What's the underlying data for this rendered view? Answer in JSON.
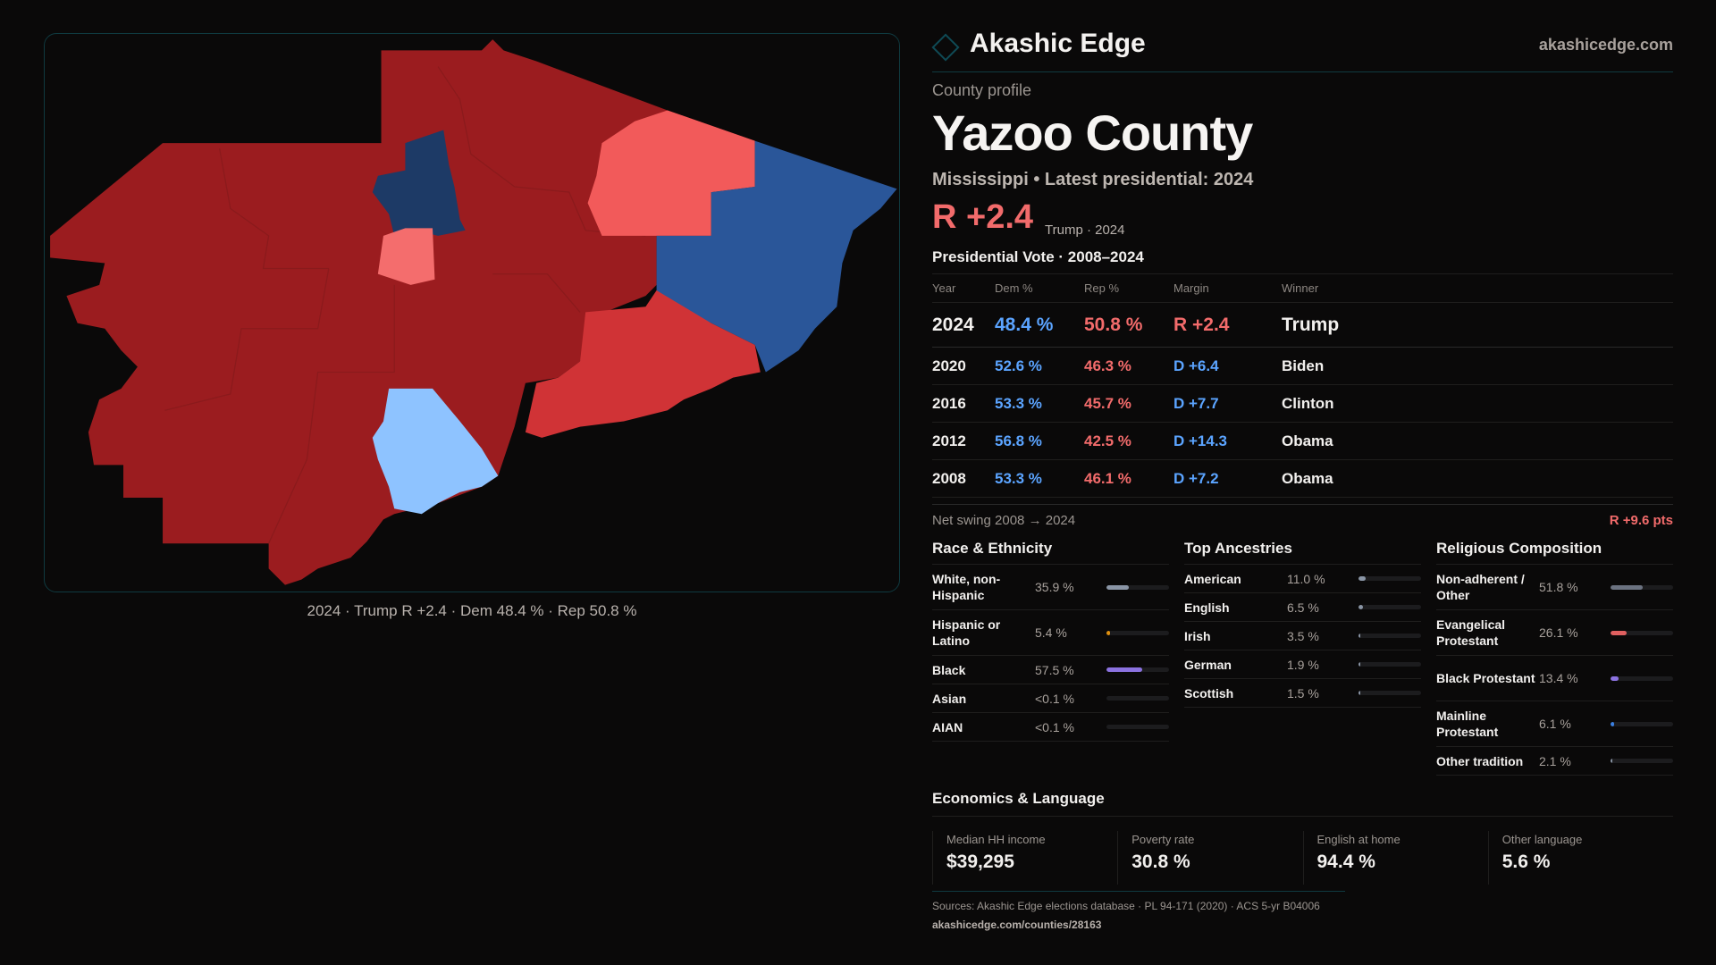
{
  "brand": {
    "name": "Akashic Edge",
    "site": "akashicedge.com"
  },
  "profile": {
    "kicker": "County profile",
    "title": "Yazoo County",
    "subtitle": "Mississippi • Latest presidential: 2024",
    "margin": "R +2.4",
    "margin_note": "Trump · 2024"
  },
  "map": {
    "caption": "2024 · Trump R +2.4 · Dem 48.4 % · Rep 50.8 %",
    "colors": {
      "strong_r": "#9b1c1f",
      "lean_r": "#d03336",
      "tilt_r": "#f25a5a",
      "strong_d": "#2a5699",
      "tilt_d": "#8ec3ff"
    }
  },
  "vote": {
    "title": "Presidential Vote · 2008–2024",
    "headers": [
      "Year",
      "Dem %",
      "Rep %",
      "Margin",
      "Winner"
    ],
    "rows": [
      {
        "year": "2024",
        "dem": "48.4 %",
        "rep": "50.8 %",
        "margin": "R +2.4",
        "party": "rep",
        "winner": "Trump"
      },
      {
        "year": "2020",
        "dem": "52.6 %",
        "rep": "46.3 %",
        "margin": "D +6.4",
        "party": "dem",
        "winner": "Biden"
      },
      {
        "year": "2016",
        "dem": "53.3 %",
        "rep": "45.7 %",
        "margin": "D +7.7",
        "party": "dem",
        "winner": "Clinton"
      },
      {
        "year": "2012",
        "dem": "56.8 %",
        "rep": "42.5 %",
        "margin": "D +14.3",
        "party": "dem",
        "winner": "Obama"
      },
      {
        "year": "2008",
        "dem": "53.3 %",
        "rep": "46.1 %",
        "margin": "D +7.2",
        "party": "dem",
        "winner": "Obama"
      }
    ],
    "swing_label": "Net swing 2008 → 2024",
    "swing_value": "R +9.6 pts"
  },
  "race": {
    "title": "Race & Ethnicity",
    "items": [
      {
        "label": "White, non-Hispanic",
        "pct": "35.9 %",
        "value": 35.9,
        "color": "#8a95a5"
      },
      {
        "label": "Hispanic or Latino",
        "pct": "5.4 %",
        "value": 5.4,
        "color": "#e0900f"
      },
      {
        "label": "Black",
        "pct": "57.5 %",
        "value": 57.5,
        "color": "#8b72e0"
      },
      {
        "label": "Asian",
        "pct": "<0.1 %",
        "value": 0,
        "color": "#8a95a5"
      },
      {
        "label": "AIAN",
        "pct": "<0.1 %",
        "value": 0,
        "color": "#8a95a5"
      }
    ]
  },
  "ancestry": {
    "title": "Top Ancestries",
    "items": [
      {
        "label": "American",
        "pct": "11.0 %",
        "value": 11.0,
        "color": "#8a95a5"
      },
      {
        "label": "English",
        "pct": "6.5 %",
        "value": 6.5,
        "color": "#8a95a5"
      },
      {
        "label": "Irish",
        "pct": "3.5 %",
        "value": 3.5,
        "color": "#8a95a5"
      },
      {
        "label": "German",
        "pct": "1.9 %",
        "value": 1.9,
        "color": "#8a95a5"
      },
      {
        "label": "Scottish",
        "pct": "1.5 %",
        "value": 1.5,
        "color": "#8a95a5"
      }
    ]
  },
  "religion": {
    "title": "Religious Composition",
    "items": [
      {
        "label": "Non-adherent / Other",
        "pct": "51.8 %",
        "value": 51.8,
        "color": "#6b7280"
      },
      {
        "label": "Evangelical Protestant",
        "pct": "26.1 %",
        "value": 26.1,
        "color": "#e06060"
      },
      {
        "label": "Black Protestant",
        "pct": "13.4 %",
        "value": 13.4,
        "color": "#8b72e0"
      },
      {
        "label": "Mainline Protestant",
        "pct": "6.1 %",
        "value": 6.1,
        "color": "#3a7fe0"
      },
      {
        "label": "Other tradition",
        "pct": "2.1 %",
        "value": 2.1,
        "color": "#8a95a5"
      }
    ]
  },
  "economics": {
    "title": "Economics & Language",
    "cards": [
      {
        "label": "Median HH income",
        "value": "$39,295"
      },
      {
        "label": "Poverty rate",
        "value": "30.8 %"
      },
      {
        "label": "English at home",
        "value": "94.4 %"
      },
      {
        "label": "Other language",
        "value": "5.6 %"
      }
    ]
  },
  "footer": {
    "sources": "Sources: Akashic Edge elections database · PL 94-171 (2020) · ACS 5-yr B04006",
    "url": "akashicedge.com/counties/28163"
  }
}
